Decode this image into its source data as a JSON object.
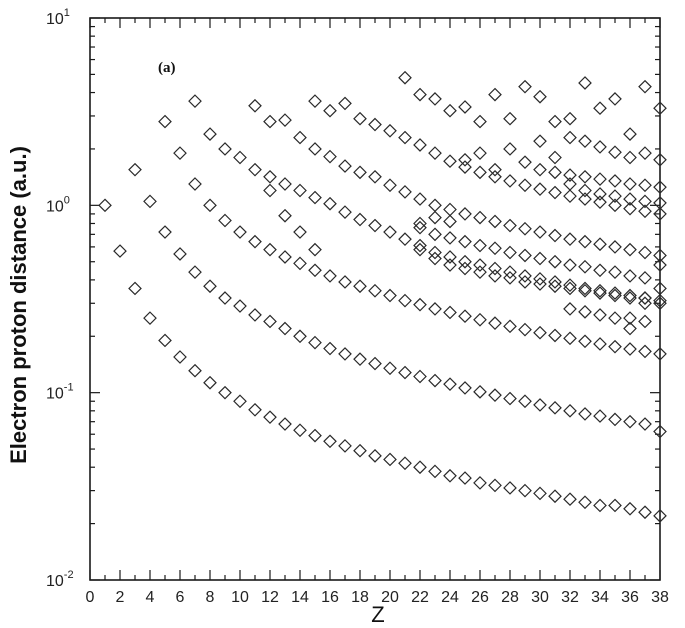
{
  "chart_data": {
    "type": "scatter",
    "panel_label": "(a)",
    "xlabel": "Z",
    "ylabel": "Electron proton distance (a.u.)",
    "xlim": [
      0,
      38
    ],
    "ylim": [
      0.01,
      10
    ],
    "yscale": "log",
    "marker": "diamond-open",
    "x_ticks": [
      "0",
      "2",
      "4",
      "6",
      "8",
      "10",
      "12",
      "14",
      "16",
      "18",
      "20",
      "22",
      "24",
      "26",
      "28",
      "30",
      "32",
      "34",
      "36",
      "38"
    ],
    "y_ticks": [
      {
        "base": "10",
        "exp": "1"
      },
      {
        "base": "10",
        "exp": "0"
      },
      {
        "base": "10",
        "exp": "-1"
      },
      {
        "base": "10",
        "exp": "-2"
      }
    ],
    "series": [
      {
        "points": [
          [
            1,
            1.0
          ],
          [
            2,
            0.57
          ],
          [
            3,
            0.36
          ],
          [
            4,
            0.25
          ],
          [
            5,
            0.19
          ],
          [
            6,
            0.155
          ],
          [
            7,
            0.131
          ],
          [
            8,
            0.113
          ],
          [
            9,
            0.1
          ],
          [
            10,
            0.09
          ],
          [
            11,
            0.081
          ],
          [
            12,
            0.074
          ],
          [
            13,
            0.068
          ],
          [
            14,
            0.063
          ],
          [
            15,
            0.059
          ],
          [
            16,
            0.055
          ],
          [
            17,
            0.052
          ],
          [
            18,
            0.049
          ],
          [
            19,
            0.046
          ],
          [
            20,
            0.044
          ],
          [
            21,
            0.042
          ],
          [
            22,
            0.04
          ],
          [
            23,
            0.038
          ],
          [
            24,
            0.036
          ],
          [
            25,
            0.035
          ],
          [
            26,
            0.033
          ],
          [
            27,
            0.032
          ],
          [
            28,
            0.031
          ],
          [
            29,
            0.03
          ],
          [
            30,
            0.029
          ],
          [
            31,
            0.028
          ],
          [
            32,
            0.027
          ],
          [
            33,
            0.026
          ],
          [
            34,
            0.025
          ],
          [
            35,
            0.025
          ],
          [
            36,
            0.024
          ],
          [
            37,
            0.023
          ],
          [
            38,
            0.022
          ]
        ]
      },
      {
        "points": [
          [
            3,
            1.55
          ],
          [
            4,
            1.05
          ],
          [
            5,
            0.72
          ],
          [
            6,
            0.55
          ],
          [
            7,
            0.44
          ],
          [
            8,
            0.37
          ],
          [
            9,
            0.32
          ],
          [
            10,
            0.29
          ],
          [
            11,
            0.26
          ],
          [
            12,
            0.24
          ],
          [
            13,
            0.22
          ],
          [
            14,
            0.2
          ],
          [
            15,
            0.185
          ],
          [
            16,
            0.172
          ],
          [
            17,
            0.161
          ],
          [
            18,
            0.151
          ],
          [
            19,
            0.143
          ],
          [
            20,
            0.135
          ],
          [
            21,
            0.128
          ],
          [
            22,
            0.122
          ],
          [
            23,
            0.116
          ],
          [
            24,
            0.111
          ],
          [
            25,
            0.106
          ],
          [
            26,
            0.101
          ],
          [
            27,
            0.097
          ],
          [
            28,
            0.093
          ],
          [
            29,
            0.09
          ],
          [
            30,
            0.086
          ],
          [
            31,
            0.083
          ],
          [
            32,
            0.08
          ],
          [
            33,
            0.077
          ],
          [
            34,
            0.075
          ],
          [
            35,
            0.072
          ],
          [
            36,
            0.07
          ],
          [
            37,
            0.068
          ],
          [
            38,
            0.062
          ]
        ]
      },
      {
        "points": [
          [
            5,
            2.8
          ],
          [
            6,
            1.9
          ],
          [
            7,
            1.3
          ],
          [
            8,
            1.0
          ],
          [
            9,
            0.83
          ],
          [
            10,
            0.72
          ],
          [
            11,
            0.64
          ],
          [
            12,
            0.58
          ],
          [
            13,
            0.53
          ],
          [
            14,
            0.49
          ],
          [
            15,
            0.45
          ],
          [
            16,
            0.42
          ],
          [
            17,
            0.39
          ],
          [
            18,
            0.37
          ],
          [
            19,
            0.35
          ],
          [
            20,
            0.33
          ],
          [
            21,
            0.31
          ],
          [
            22,
            0.295
          ],
          [
            23,
            0.28
          ],
          [
            24,
            0.268
          ],
          [
            25,
            0.256
          ],
          [
            26,
            0.245
          ],
          [
            27,
            0.235
          ],
          [
            28,
            0.226
          ],
          [
            29,
            0.217
          ],
          [
            30,
            0.209
          ],
          [
            31,
            0.202
          ],
          [
            32,
            0.195
          ],
          [
            33,
            0.188
          ],
          [
            34,
            0.182
          ],
          [
            35,
            0.176
          ],
          [
            36,
            0.171
          ],
          [
            37,
            0.166
          ],
          [
            38,
            0.161
          ]
        ]
      },
      {
        "points": [
          [
            7,
            3.6
          ],
          [
            8,
            2.4
          ],
          [
            9,
            2.0
          ],
          [
            10,
            1.8
          ],
          [
            11,
            1.55
          ],
          [
            12,
            1.42
          ],
          [
            13,
            1.3
          ],
          [
            14,
            1.2
          ],
          [
            15,
            1.1
          ],
          [
            16,
            1.02
          ],
          [
            17,
            0.92
          ],
          [
            18,
            0.84
          ],
          [
            19,
            0.78
          ],
          [
            20,
            0.72
          ],
          [
            21,
            0.66
          ],
          [
            22,
            0.61
          ],
          [
            23,
            0.56
          ],
          [
            24,
            0.53
          ],
          [
            25,
            0.5
          ],
          [
            26,
            0.48
          ],
          [
            27,
            0.46
          ],
          [
            28,
            0.44
          ],
          [
            29,
            0.42
          ],
          [
            30,
            0.405
          ],
          [
            31,
            0.39
          ],
          [
            32,
            0.375
          ],
          [
            33,
            0.36
          ],
          [
            34,
            0.35
          ],
          [
            35,
            0.34
          ],
          [
            36,
            0.33
          ],
          [
            37,
            0.32
          ],
          [
            38,
            0.31
          ]
        ]
      },
      {
        "points": [
          [
            11,
            3.4
          ],
          [
            12,
            2.8
          ],
          [
            13,
            2.85
          ],
          [
            14,
            2.3
          ],
          [
            15,
            2.0
          ],
          [
            16,
            1.82
          ],
          [
            17,
            1.62
          ],
          [
            18,
            1.5
          ],
          [
            19,
            1.42
          ],
          [
            20,
            1.28
          ],
          [
            21,
            1.18
          ],
          [
            22,
            1.08
          ],
          [
            23,
            1.0
          ],
          [
            24,
            0.95
          ],
          [
            25,
            0.9
          ],
          [
            26,
            0.86
          ],
          [
            27,
            0.82
          ],
          [
            28,
            0.78
          ],
          [
            29,
            0.75
          ],
          [
            30,
            0.72
          ],
          [
            31,
            0.69
          ],
          [
            32,
            0.66
          ],
          [
            33,
            0.64
          ],
          [
            34,
            0.62
          ],
          [
            35,
            0.6
          ],
          [
            36,
            0.58
          ],
          [
            37,
            0.56
          ],
          [
            38,
            0.54
          ]
        ]
      },
      {
        "points": [
          [
            15,
            3.6
          ],
          [
            16,
            3.2
          ],
          [
            17,
            3.5
          ],
          [
            18,
            2.9
          ],
          [
            19,
            2.7
          ],
          [
            20,
            2.5
          ],
          [
            21,
            2.3
          ],
          [
            22,
            2.1
          ],
          [
            23,
            1.9
          ],
          [
            24,
            1.72
          ],
          [
            25,
            1.6
          ],
          [
            26,
            1.5
          ],
          [
            27,
            1.42
          ],
          [
            28,
            1.35
          ],
          [
            29,
            1.28
          ],
          [
            30,
            1.22
          ],
          [
            31,
            1.17
          ],
          [
            32,
            1.12
          ],
          [
            33,
            1.08
          ],
          [
            34,
            1.04
          ],
          [
            35,
            1.0
          ],
          [
            36,
            0.96
          ],
          [
            37,
            0.93
          ],
          [
            38,
            0.9
          ]
        ]
      },
      {
        "points": [
          [
            21,
            4.8
          ],
          [
            22,
            3.9
          ],
          [
            23,
            3.7
          ],
          [
            24,
            3.2
          ],
          [
            25,
            3.35
          ],
          [
            26,
            2.8
          ],
          [
            27,
            3.9
          ],
          [
            28,
            2.9
          ],
          [
            29,
            4.3
          ],
          [
            30,
            3.8
          ],
          [
            31,
            2.8
          ],
          [
            32,
            2.9
          ],
          [
            33,
            4.5
          ],
          [
            34,
            3.3
          ],
          [
            35,
            3.7
          ],
          [
            36,
            2.4
          ],
          [
            37,
            4.3
          ],
          [
            38,
            3.3
          ]
        ]
      },
      {
        "points": [
          [
            12,
            1.2
          ],
          [
            14,
            0.72
          ],
          [
            15,
            0.58
          ],
          [
            22,
            0.76
          ],
          [
            23,
            0.7
          ],
          [
            24,
            0.67
          ],
          [
            25,
            0.64
          ],
          [
            26,
            0.61
          ],
          [
            27,
            0.59
          ],
          [
            28,
            0.56
          ],
          [
            29,
            0.54
          ],
          [
            30,
            0.52
          ],
          [
            31,
            0.5
          ],
          [
            32,
            0.48
          ],
          [
            33,
            0.47
          ],
          [
            34,
            0.45
          ],
          [
            35,
            0.44
          ],
          [
            36,
            0.42
          ],
          [
            37,
            0.41
          ],
          [
            38,
            0.36
          ]
        ]
      },
      {
        "points": [
          [
            13,
            0.88
          ],
          [
            22,
            0.58
          ],
          [
            23,
            0.52
          ],
          [
            24,
            0.48
          ],
          [
            25,
            0.46
          ],
          [
            26,
            0.44
          ],
          [
            27,
            0.42
          ],
          [
            28,
            0.41
          ],
          [
            29,
            0.39
          ],
          [
            30,
            0.38
          ],
          [
            31,
            0.37
          ],
          [
            32,
            0.36
          ],
          [
            33,
            0.35
          ],
          [
            34,
            0.34
          ],
          [
            35,
            0.33
          ],
          [
            36,
            0.32
          ],
          [
            37,
            0.32
          ],
          [
            38,
            0.3
          ]
        ]
      },
      {
        "points": [
          [
            25,
            1.75
          ],
          [
            26,
            1.9
          ],
          [
            27,
            1.55
          ],
          [
            28,
            2.0
          ],
          [
            29,
            1.7
          ],
          [
            30,
            2.2
          ],
          [
            31,
            1.8
          ],
          [
            32,
            2.3
          ],
          [
            33,
            2.2
          ],
          [
            34,
            2.05
          ],
          [
            35,
            1.92
          ],
          [
            36,
            1.8
          ],
          [
            37,
            1.9
          ],
          [
            38,
            1.75
          ]
        ]
      },
      {
        "points": [
          [
            30,
            1.55
          ],
          [
            31,
            1.5
          ],
          [
            32,
            1.45
          ],
          [
            33,
            1.42
          ],
          [
            34,
            1.38
          ],
          [
            35,
            1.35
          ],
          [
            36,
            1.3
          ],
          [
            37,
            1.28
          ],
          [
            38,
            1.25
          ]
        ]
      },
      {
        "points": [
          [
            32,
            1.3
          ],
          [
            33,
            1.2
          ],
          [
            34,
            1.15
          ],
          [
            35,
            1.12
          ],
          [
            36,
            1.08
          ],
          [
            37,
            1.05
          ],
          [
            38,
            1.03
          ]
        ]
      },
      {
        "points": [
          [
            32,
            0.28
          ],
          [
            33,
            0.27
          ],
          [
            34,
            0.26
          ],
          [
            35,
            0.25
          ],
          [
            36,
            0.25
          ],
          [
            37,
            0.24
          ]
        ]
      },
      {
        "points": [
          [
            22,
            0.8
          ],
          [
            23,
            0.86
          ],
          [
            24,
            0.82
          ],
          [
            36,
            0.22
          ],
          [
            37,
            0.3
          ],
          [
            38,
            0.48
          ]
        ]
      }
    ]
  }
}
